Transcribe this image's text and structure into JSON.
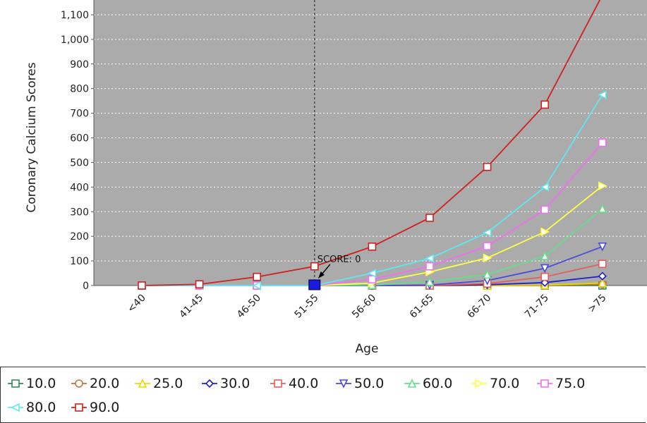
{
  "chart_data": {
    "type": "line",
    "title": "",
    "xlabel": "Age",
    "ylabel": "Coronary Calcium Scores",
    "categories": [
      "<40",
      "41-45",
      "46-50",
      "51-55",
      "56-60",
      "61-65",
      "66-70",
      "71-75",
      ">75"
    ],
    "yticks": [
      "0",
      "100",
      "200",
      "300",
      "400",
      "500",
      "600",
      "700",
      "800",
      "900",
      "1,000",
      "1,100"
    ],
    "ylim": [
      0,
      1160
    ],
    "grid": true,
    "legend_position": "bottom",
    "annotation": {
      "text": "SCORE: 0",
      "category": "51-55",
      "value": 0
    },
    "series": [
      {
        "name": "10.0",
        "color": "#2e8b57",
        "marker": "square",
        "values": [
          0,
          0,
          0,
          0,
          0,
          0,
          0,
          0,
          0
        ]
      },
      {
        "name": "20.0",
        "color": "#c8733a",
        "marker": "circle",
        "values": [
          0,
          0,
          0,
          0,
          0,
          0,
          0,
          0,
          5
        ]
      },
      {
        "name": "25.0",
        "color": "#e8d800",
        "marker": "triangle-up",
        "values": [
          0,
          0,
          0,
          0,
          0,
          0,
          0,
          2,
          10
        ]
      },
      {
        "name": "30.0",
        "color": "#2020c8",
        "marker": "diamond",
        "values": [
          0,
          0,
          0,
          0,
          0,
          0,
          3,
          12,
          38
        ]
      },
      {
        "name": "40.0",
        "color": "#e06060",
        "marker": "square",
        "values": [
          0,
          0,
          0,
          0,
          0,
          0,
          8,
          35,
          88
        ]
      },
      {
        "name": "50.0",
        "color": "#4a4adc",
        "marker": "triangle-down",
        "values": [
          0,
          0,
          0,
          0,
          0,
          2,
          20,
          70,
          158
        ]
      },
      {
        "name": "60.0",
        "color": "#66dd88",
        "marker": "triangle-up",
        "values": [
          0,
          0,
          0,
          0,
          2,
          15,
          45,
          120,
          312
        ]
      },
      {
        "name": "70.0",
        "color": "#ffff44",
        "marker": "triangle-right",
        "values": [
          0,
          0,
          0,
          0,
          10,
          55,
          112,
          218,
          405
        ]
      },
      {
        "name": "75.0",
        "color": "#f070f0",
        "marker": "square",
        "values": [
          0,
          0,
          0,
          0,
          25,
          78,
          160,
          308,
          580
        ]
      },
      {
        "name": "80.0",
        "color": "#60e8f0",
        "marker": "triangle-left",
        "values": [
          0,
          0,
          0,
          0,
          50,
          110,
          215,
          400,
          775
        ]
      },
      {
        "name": "90.0",
        "color": "#d02020",
        "marker": "square",
        "values": [
          0,
          5,
          35,
          78,
          158,
          275,
          482,
          735,
          1180
        ]
      }
    ]
  }
}
